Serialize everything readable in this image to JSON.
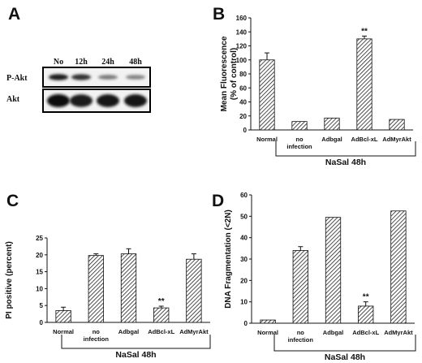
{
  "panels": {
    "A": {
      "letter": "A",
      "time_labels": [
        "No",
        "12h",
        "24h",
        "48h"
      ],
      "row_labels": [
        "P-Akt",
        "Akt"
      ],
      "band_intensity": {
        "P-Akt": [
          0.9,
          0.8,
          0.45,
          0.4
        ],
        "Akt": [
          1.0,
          0.9,
          0.95,
          0.95
        ]
      }
    },
    "B": {
      "letter": "B",
      "group_label": "NaSal 48h",
      "significance": "**"
    },
    "C": {
      "letter": "C",
      "group_label": "NaSal 48h",
      "significance": "**"
    },
    "D": {
      "letter": "D",
      "group_label": "NaSal 48h",
      "significance": "**"
    }
  },
  "chart_data": [
    {
      "id": "B",
      "type": "bar",
      "categories": [
        "Normal",
        "no infection",
        "Adbgal",
        "AdBcl-xL",
        "AdMyrAkt"
      ],
      "values": [
        100,
        12,
        17,
        130,
        15
      ],
      "errors": [
        10,
        0,
        0,
        4,
        0
      ],
      "ylabel": "Mean Fluorescence (% of control)",
      "ylim": [
        0,
        160
      ],
      "yticks": [
        0,
        20,
        40,
        60,
        80,
        100,
        120,
        140,
        160
      ],
      "significant": [
        false,
        false,
        false,
        true,
        false
      ]
    },
    {
      "id": "C",
      "type": "bar",
      "categories": [
        "Normal",
        "no infection",
        "Adbgal",
        "AdBcl-xL",
        "AdMyrAkt"
      ],
      "values": [
        3.5,
        19.8,
        20.3,
        4.3,
        18.7
      ],
      "errors": [
        1.0,
        0.5,
        1.5,
        0.5,
        1.6
      ],
      "ylabel": "PI positive (percent)",
      "ylim": [
        0,
        25
      ],
      "yticks": [
        0,
        5,
        10,
        15,
        20,
        25
      ],
      "significant": [
        false,
        false,
        false,
        true,
        false
      ]
    },
    {
      "id": "D",
      "type": "bar",
      "categories": [
        "Normal",
        "no infection",
        "Adbgal",
        "AdBcl-xL",
        "AdMyrAkt"
      ],
      "values": [
        1.5,
        34,
        49.5,
        8,
        52.5
      ],
      "errors": [
        0,
        1.8,
        0,
        2.0,
        0
      ],
      "ylabel": "DNA Fragmentation (<2N)",
      "ylim": [
        0,
        60
      ],
      "yticks": [
        0,
        10,
        20,
        30,
        40,
        50,
        60
      ],
      "significant": [
        false,
        false,
        false,
        true,
        false
      ]
    }
  ]
}
